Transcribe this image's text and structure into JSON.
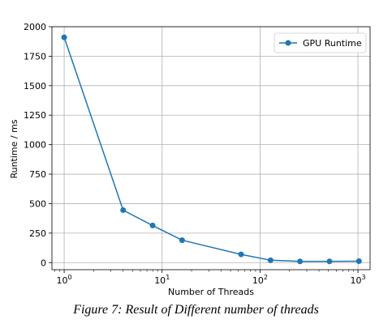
{
  "caption": "Figure 7: Result of Different number of threads",
  "chart_data": {
    "type": "line",
    "xscale": "log",
    "xlabel": "Number of Threads",
    "ylabel": "Runtime / ms",
    "xlim": [
      0.75,
      1330
    ],
    "ylim": [
      -60,
      2000
    ],
    "grid": true,
    "legend_position": "top-right",
    "x_ticks": [
      {
        "value": 1,
        "base": "10",
        "exp": "0"
      },
      {
        "value": 10,
        "base": "10",
        "exp": "1"
      },
      {
        "value": 100,
        "base": "10",
        "exp": "2"
      },
      {
        "value": 1000,
        "base": "10",
        "exp": "3"
      }
    ],
    "y_ticks": [
      0,
      250,
      500,
      750,
      1000,
      1250,
      1500,
      1750,
      2000
    ],
    "series": [
      {
        "name": "GPU Runtime",
        "color": "#1f77b4",
        "x": [
          1,
          4,
          8,
          16,
          64,
          128,
          256,
          512,
          1024
        ],
        "y": [
          1910,
          445,
          315,
          190,
          70,
          20,
          10,
          10,
          12
        ]
      }
    ]
  }
}
